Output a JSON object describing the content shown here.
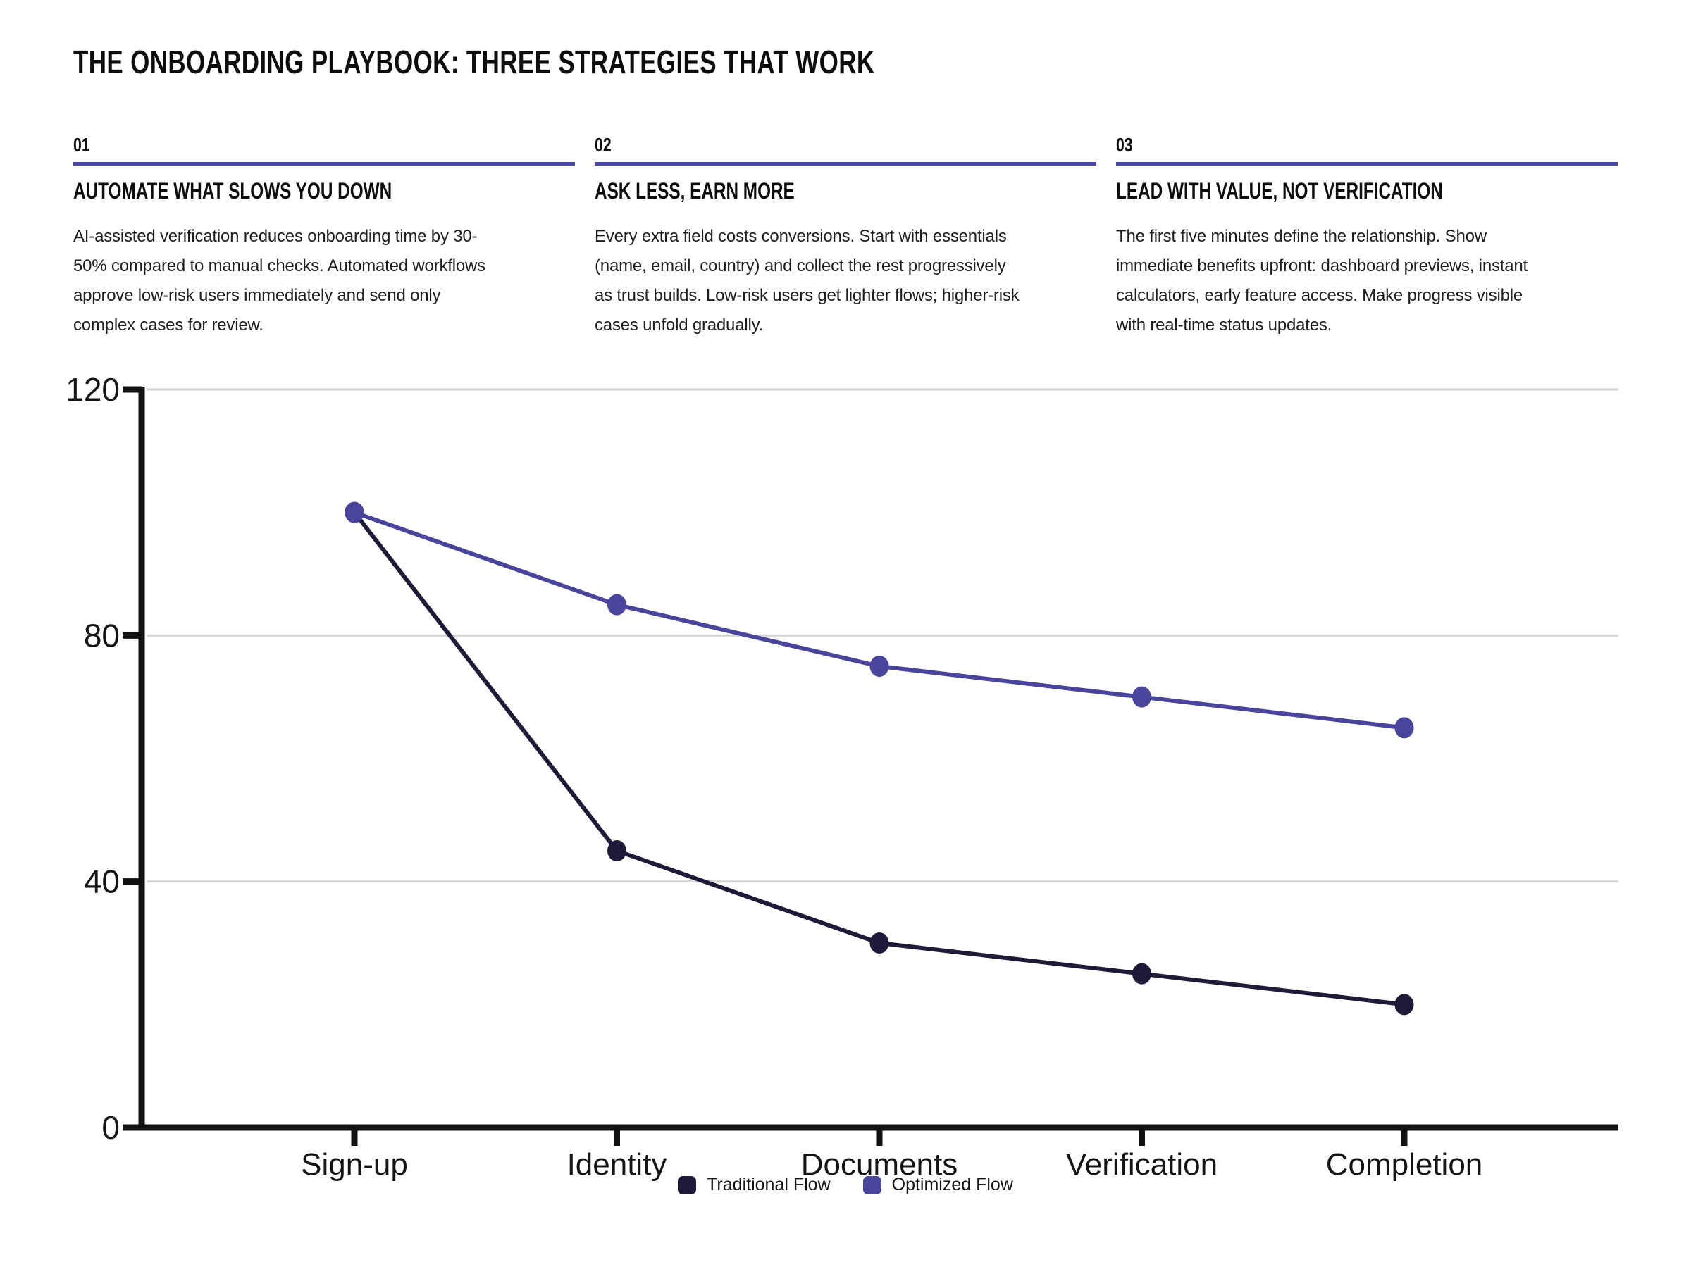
{
  "page": {
    "title": "THE ONBOARDING PLAYBOOK: THREE STRATEGIES THAT WORK"
  },
  "accent_color": "#4B46A8",
  "strategies": [
    {
      "number": "01",
      "heading": "AUTOMATE WHAT SLOWS YOU DOWN",
      "body": "AI-assisted verification reduces onboarding time by 30-\n50% compared to manual checks. Automated workflows\napprove low-risk users immediately and send only\ncomplex cases for review."
    },
    {
      "number": "02",
      "heading": "ASK LESS, EARN MORE",
      "body": "Every extra field costs conversions. Start with essentials\n(name, email, country) and collect the rest progressively\nas trust builds. Low-risk users get lighter flows; higher-risk\ncases unfold gradually."
    },
    {
      "number": "03",
      "heading": "LEAD WITH VALUE, NOT VERIFICATION",
      "body": "The first five minutes define the relationship. Show\nimmediate benefits upfront: dashboard previews, instant\ncalculators, early feature access. Make progress visible\nwith real-time status updates."
    }
  ],
  "chart_data": {
    "type": "line",
    "categories": [
      "Sign-up",
      "Identity",
      "Documents",
      "Verification",
      "Completion"
    ],
    "series": [
      {
        "name": "Traditional Flow",
        "color": "#1E1B38",
        "values": [
          100,
          45,
          30,
          25,
          20
        ]
      },
      {
        "name": "Optimized Flow",
        "color": "#4A459C",
        "values": [
          100,
          85,
          75,
          70,
          65
        ]
      }
    ],
    "yticks": [
      0,
      40,
      80,
      120
    ],
    "ylim": [
      0,
      120
    ],
    "xlabel": "",
    "ylabel": "",
    "grid": true,
    "gridline_color": "#D6D6D6",
    "axis_color": "#111111",
    "legend_position": "bottom"
  }
}
